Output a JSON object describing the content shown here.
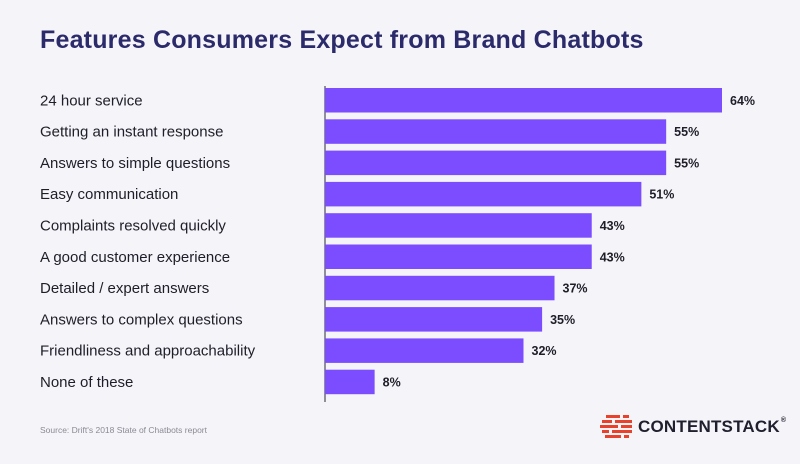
{
  "title": "Features Consumers Expect from Brand Chatbots",
  "source": "Source: Drift's 2018 State of Chatbots report",
  "brand": {
    "name": "CONTENTSTACK",
    "trademark": "®"
  },
  "colors": {
    "bar": "#7b4dff",
    "title": "#2b2a6b",
    "accent": "#e8412c",
    "background": "#f5f4f8"
  },
  "chart_data": {
    "type": "bar",
    "orientation": "horizontal",
    "categories": [
      "24 hour service",
      "Getting an instant response",
      "Answers to simple questions",
      "Easy communication",
      "Complaints resolved quickly",
      "A good customer experience",
      "Detailed / expert answers",
      "Answers to complex questions",
      "Friendliness and approachability",
      "None of these"
    ],
    "values": [
      64,
      55,
      55,
      51,
      43,
      43,
      37,
      35,
      32,
      8
    ],
    "value_labels": [
      "64%",
      "55%",
      "55%",
      "51%",
      "43%",
      "43%",
      "37%",
      "35%",
      "32%",
      "8%"
    ],
    "xlim": [
      0,
      64
    ],
    "grid": false,
    "legend": "none"
  }
}
